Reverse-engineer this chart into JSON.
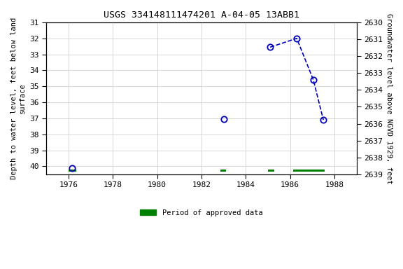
{
  "title": "USGS 334148111474201 A-04-05 13ABB1",
  "ylabel_left": "Depth to water level, feet below land\nsurface",
  "ylabel_right": "Groundwater level above NGVD 1929, feet",
  "xlim": [
    1975.0,
    1989.0
  ],
  "ylim_left": [
    31.0,
    40.5
  ],
  "ylim_right_top": 2639.0,
  "ylim_right_bottom": 2630.0,
  "xticks": [
    1976,
    1978,
    1980,
    1982,
    1984,
    1986,
    1988
  ],
  "yticks_left": [
    31.0,
    32.0,
    33.0,
    34.0,
    35.0,
    36.0,
    37.0,
    38.0,
    39.0,
    40.0
  ],
  "yticks_right": [
    2639.0,
    2638.0,
    2637.0,
    2636.0,
    2635.0,
    2634.0,
    2633.0,
    2632.0,
    2631.0,
    2630.0
  ],
  "data_x": [
    1976.15,
    1983.0,
    1985.1,
    1986.3,
    1987.05,
    1987.5
  ],
  "data_y": [
    40.1,
    37.05,
    32.55,
    32.0,
    34.6,
    37.1
  ],
  "connected_indices": [
    2,
    3,
    4,
    5
  ],
  "line_color": "#0000bb",
  "marker_color": "#0000bb",
  "green_bar_segments": [
    {
      "x_start": 1976.0,
      "x_end": 1976.35
    },
    {
      "x_start": 1982.85,
      "x_end": 1983.1
    },
    {
      "x_start": 1985.0,
      "x_end": 1985.3
    },
    {
      "x_start": 1986.15,
      "x_end": 1987.55
    }
  ],
  "green_bar_y": 40.28,
  "green_bar_height": 0.13,
  "background_color": "#ffffff",
  "grid_color": "#c8c8c8",
  "font_color": "#000000",
  "title_fontsize": 9.5,
  "label_fontsize": 7.5,
  "tick_fontsize": 8
}
